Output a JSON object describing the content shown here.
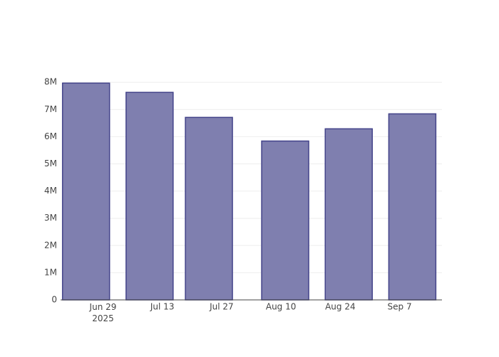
{
  "chart_data": {
    "type": "bar",
    "x": [
      "2025-06-25",
      "2025-07-10",
      "2025-07-24",
      "2025-08-11",
      "2025-08-26",
      "2025-09-10"
    ],
    "values": [
      7970000,
      7630000,
      6710000,
      5840000,
      6290000,
      6840000
    ],
    "color": "#7f7faf",
    "xlim": [
      "2025-06-19T12:00",
      "2025-09-17T00:00"
    ],
    "xticks": [
      {
        "value": "2025-06-29",
        "label": "Jun 29\n2025"
      },
      {
        "value": "2025-07-13",
        "label": "Jul 13"
      },
      {
        "value": "2025-07-27",
        "label": "Jul 27"
      },
      {
        "value": "2025-08-10",
        "label": "Aug 10"
      },
      {
        "value": "2025-08-24",
        "label": "Aug 24"
      },
      {
        "value": "2025-09-07",
        "label": "Sep 7"
      }
    ],
    "ylim": [
      0,
      8400000
    ],
    "yticks": [
      0,
      {
        "value": 1000000,
        "label": "1M"
      },
      {
        "value": 2000000,
        "label": "2M"
      },
      {
        "value": 3000000,
        "label": "3M"
      },
      {
        "value": 4000000,
        "label": "4M"
      },
      {
        "value": 5000000,
        "label": "5M"
      },
      {
        "value": 6000000,
        "label": "6M"
      },
      {
        "value": 7000000,
        "label": "7M"
      },
      {
        "value": 8000000,
        "label": "8M"
      }
    ],
    "grid": true
  }
}
